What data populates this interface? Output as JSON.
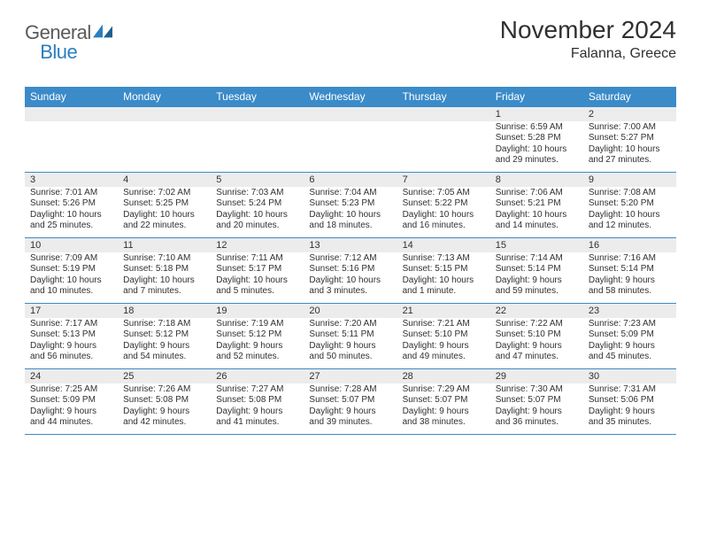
{
  "brand": {
    "part1": "General",
    "part2": "Blue"
  },
  "title": "November 2024",
  "location": "Falanna, Greece",
  "colors": {
    "header_bg": "#3b8bc9",
    "header_text": "#ffffff",
    "num_bg": "#ececec",
    "rule": "#3b8bc9",
    "body_text": "#303030",
    "logo_blue": "#2a7fbf",
    "logo_gray": "#5a5a5a"
  },
  "day_names": [
    "Sunday",
    "Monday",
    "Tuesday",
    "Wednesday",
    "Thursday",
    "Friday",
    "Saturday"
  ],
  "weeks": [
    [
      {
        "n": "",
        "sr": "",
        "ss": "",
        "dl": ""
      },
      {
        "n": "",
        "sr": "",
        "ss": "",
        "dl": ""
      },
      {
        "n": "",
        "sr": "",
        "ss": "",
        "dl": ""
      },
      {
        "n": "",
        "sr": "",
        "ss": "",
        "dl": ""
      },
      {
        "n": "",
        "sr": "",
        "ss": "",
        "dl": ""
      },
      {
        "n": "1",
        "sr": "Sunrise: 6:59 AM",
        "ss": "Sunset: 5:28 PM",
        "dl": "Daylight: 10 hours and 29 minutes."
      },
      {
        "n": "2",
        "sr": "Sunrise: 7:00 AM",
        "ss": "Sunset: 5:27 PM",
        "dl": "Daylight: 10 hours and 27 minutes."
      }
    ],
    [
      {
        "n": "3",
        "sr": "Sunrise: 7:01 AM",
        "ss": "Sunset: 5:26 PM",
        "dl": "Daylight: 10 hours and 25 minutes."
      },
      {
        "n": "4",
        "sr": "Sunrise: 7:02 AM",
        "ss": "Sunset: 5:25 PM",
        "dl": "Daylight: 10 hours and 22 minutes."
      },
      {
        "n": "5",
        "sr": "Sunrise: 7:03 AM",
        "ss": "Sunset: 5:24 PM",
        "dl": "Daylight: 10 hours and 20 minutes."
      },
      {
        "n": "6",
        "sr": "Sunrise: 7:04 AM",
        "ss": "Sunset: 5:23 PM",
        "dl": "Daylight: 10 hours and 18 minutes."
      },
      {
        "n": "7",
        "sr": "Sunrise: 7:05 AM",
        "ss": "Sunset: 5:22 PM",
        "dl": "Daylight: 10 hours and 16 minutes."
      },
      {
        "n": "8",
        "sr": "Sunrise: 7:06 AM",
        "ss": "Sunset: 5:21 PM",
        "dl": "Daylight: 10 hours and 14 minutes."
      },
      {
        "n": "9",
        "sr": "Sunrise: 7:08 AM",
        "ss": "Sunset: 5:20 PM",
        "dl": "Daylight: 10 hours and 12 minutes."
      }
    ],
    [
      {
        "n": "10",
        "sr": "Sunrise: 7:09 AM",
        "ss": "Sunset: 5:19 PM",
        "dl": "Daylight: 10 hours and 10 minutes."
      },
      {
        "n": "11",
        "sr": "Sunrise: 7:10 AM",
        "ss": "Sunset: 5:18 PM",
        "dl": "Daylight: 10 hours and 7 minutes."
      },
      {
        "n": "12",
        "sr": "Sunrise: 7:11 AM",
        "ss": "Sunset: 5:17 PM",
        "dl": "Daylight: 10 hours and 5 minutes."
      },
      {
        "n": "13",
        "sr": "Sunrise: 7:12 AM",
        "ss": "Sunset: 5:16 PM",
        "dl": "Daylight: 10 hours and 3 minutes."
      },
      {
        "n": "14",
        "sr": "Sunrise: 7:13 AM",
        "ss": "Sunset: 5:15 PM",
        "dl": "Daylight: 10 hours and 1 minute."
      },
      {
        "n": "15",
        "sr": "Sunrise: 7:14 AM",
        "ss": "Sunset: 5:14 PM",
        "dl": "Daylight: 9 hours and 59 minutes."
      },
      {
        "n": "16",
        "sr": "Sunrise: 7:16 AM",
        "ss": "Sunset: 5:14 PM",
        "dl": "Daylight: 9 hours and 58 minutes."
      }
    ],
    [
      {
        "n": "17",
        "sr": "Sunrise: 7:17 AM",
        "ss": "Sunset: 5:13 PM",
        "dl": "Daylight: 9 hours and 56 minutes."
      },
      {
        "n": "18",
        "sr": "Sunrise: 7:18 AM",
        "ss": "Sunset: 5:12 PM",
        "dl": "Daylight: 9 hours and 54 minutes."
      },
      {
        "n": "19",
        "sr": "Sunrise: 7:19 AM",
        "ss": "Sunset: 5:12 PM",
        "dl": "Daylight: 9 hours and 52 minutes."
      },
      {
        "n": "20",
        "sr": "Sunrise: 7:20 AM",
        "ss": "Sunset: 5:11 PM",
        "dl": "Daylight: 9 hours and 50 minutes."
      },
      {
        "n": "21",
        "sr": "Sunrise: 7:21 AM",
        "ss": "Sunset: 5:10 PM",
        "dl": "Daylight: 9 hours and 49 minutes."
      },
      {
        "n": "22",
        "sr": "Sunrise: 7:22 AM",
        "ss": "Sunset: 5:10 PM",
        "dl": "Daylight: 9 hours and 47 minutes."
      },
      {
        "n": "23",
        "sr": "Sunrise: 7:23 AM",
        "ss": "Sunset: 5:09 PM",
        "dl": "Daylight: 9 hours and 45 minutes."
      }
    ],
    [
      {
        "n": "24",
        "sr": "Sunrise: 7:25 AM",
        "ss": "Sunset: 5:09 PM",
        "dl": "Daylight: 9 hours and 44 minutes."
      },
      {
        "n": "25",
        "sr": "Sunrise: 7:26 AM",
        "ss": "Sunset: 5:08 PM",
        "dl": "Daylight: 9 hours and 42 minutes."
      },
      {
        "n": "26",
        "sr": "Sunrise: 7:27 AM",
        "ss": "Sunset: 5:08 PM",
        "dl": "Daylight: 9 hours and 41 minutes."
      },
      {
        "n": "27",
        "sr": "Sunrise: 7:28 AM",
        "ss": "Sunset: 5:07 PM",
        "dl": "Daylight: 9 hours and 39 minutes."
      },
      {
        "n": "28",
        "sr": "Sunrise: 7:29 AM",
        "ss": "Sunset: 5:07 PM",
        "dl": "Daylight: 9 hours and 38 minutes."
      },
      {
        "n": "29",
        "sr": "Sunrise: 7:30 AM",
        "ss": "Sunset: 5:07 PM",
        "dl": "Daylight: 9 hours and 36 minutes."
      },
      {
        "n": "30",
        "sr": "Sunrise: 7:31 AM",
        "ss": "Sunset: 5:06 PM",
        "dl": "Daylight: 9 hours and 35 minutes."
      }
    ]
  ]
}
